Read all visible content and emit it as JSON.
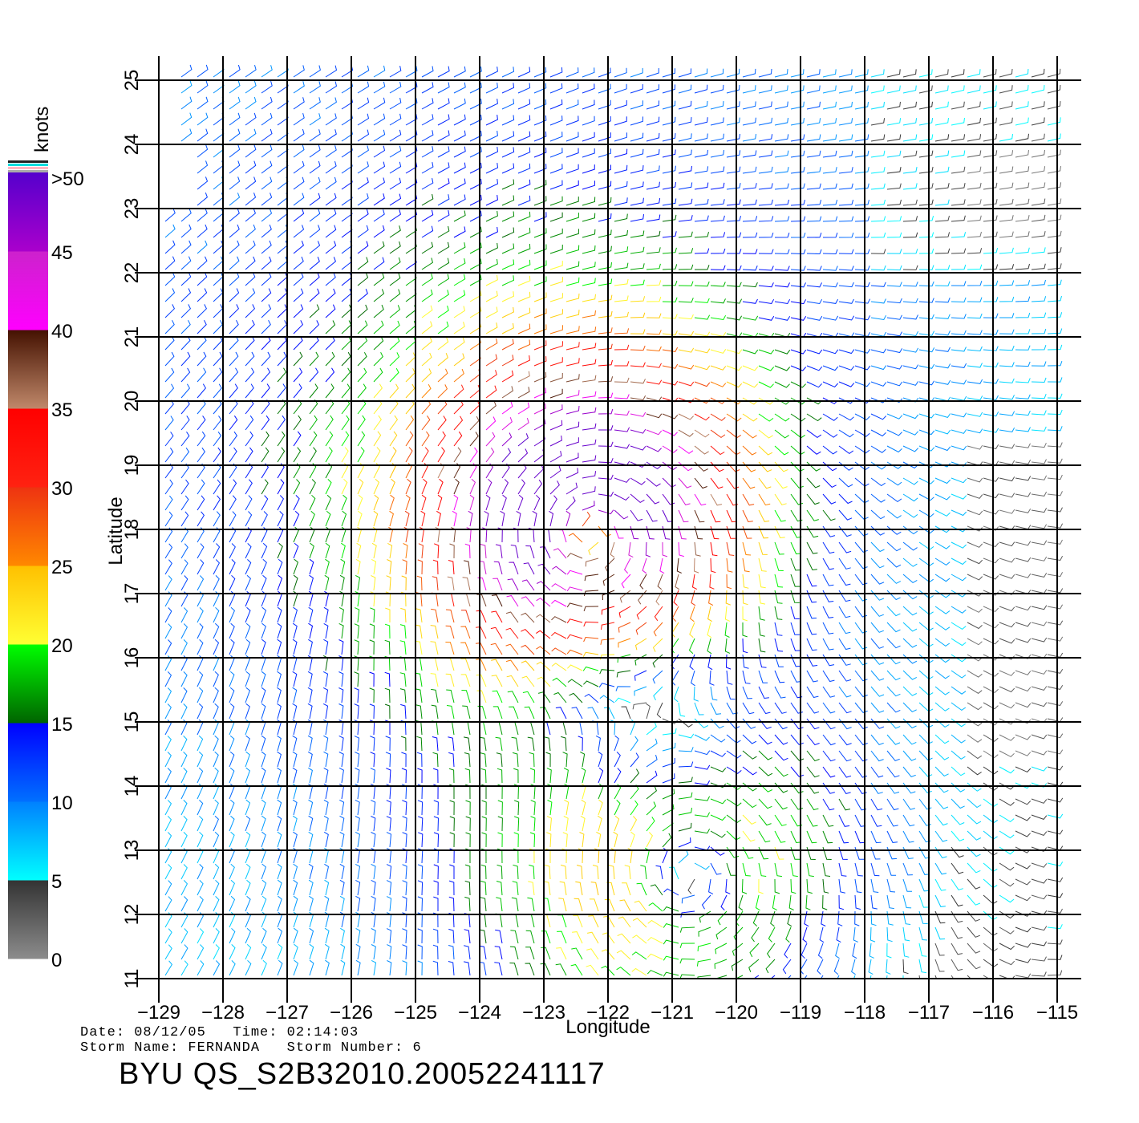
{
  "map": {
    "lon_range": [
      -129,
      -115
    ],
    "lat_range": [
      11,
      25
    ],
    "lon_ticks": [
      "−129",
      "−128",
      "−127",
      "−126",
      "−125",
      "−124",
      "−123",
      "−122",
      "−121",
      "−120",
      "−119",
      "−118",
      "−117",
      "−116",
      "−115"
    ],
    "lat_ticks": [
      "11",
      "12",
      "13",
      "14",
      "15",
      "16",
      "17",
      "18",
      "19",
      "20",
      "21",
      "22",
      "23",
      "24",
      "25"
    ],
    "xlabel": "Longitude",
    "ylabel": "Latitude",
    "grid": true,
    "storm_center": {
      "lon": -122.3,
      "lat": 18.0
    },
    "wind_field": "quikscat wind barbs around cyclonic storm"
  },
  "colorbar": {
    "unit_label": "knots",
    "tick_labels": [
      "0",
      "5",
      "10",
      "15",
      "20",
      "25",
      "30",
      "35",
      "40",
      "45",
      ">50"
    ],
    "bands": [
      {
        "from": 0,
        "to": 5,
        "top": "#333333",
        "bottom": "#8c8c8c"
      },
      {
        "from": 5,
        "to": 10,
        "top": "#0080ff",
        "bottom": "#00ffff"
      },
      {
        "from": 10,
        "to": 15,
        "top": "#0000ff",
        "bottom": "#0070ff"
      },
      {
        "from": 15,
        "to": 20,
        "top": "#00ff00",
        "bottom": "#006400"
      },
      {
        "from": 20,
        "to": 25,
        "top": "#ffc000",
        "bottom": "#ffff33"
      },
      {
        "from": 25,
        "to": 30,
        "top": "#ee3311",
        "bottom": "#ff8800"
      },
      {
        "from": 30,
        "to": 35,
        "top": "#ff0000",
        "bottom": "#ff2211"
      },
      {
        "from": 35,
        "to": 40,
        "top": "#441100",
        "bottom": "#c0886a"
      },
      {
        "from": 40,
        "to": 45,
        "top": "#cc22cc",
        "bottom": "#ff00ff"
      },
      {
        "from": 45,
        "to": 50,
        "top": "#5500cc",
        "bottom": "#aa00cc"
      }
    ],
    "cap_colors": [
      "#222222",
      "#00dddd",
      "#ffb6c1",
      "#aaaaaa"
    ]
  },
  "info": {
    "date_line": "Date: 08/12/05   Time: 02:14:03",
    "storm_line": "Storm Name: FERNANDA   Storm Number: 6",
    "title": "BYU QS_S2B32010.20052241117"
  }
}
